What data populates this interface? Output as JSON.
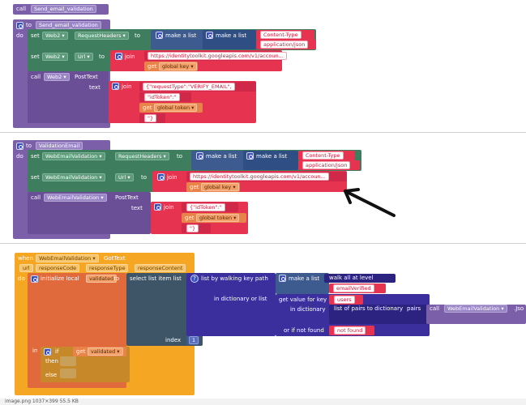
{
  "block1": {
    "call": "call",
    "name": "Send_email_validation"
  },
  "block2": {
    "to": "to",
    "name": "Send_email_validation",
    "do": "do",
    "set": "set",
    "web2": "Web2",
    "request_headers": "RequestHeaders",
    "to_kw": "to",
    "make_a_list": "make a list",
    "content_type": "Content-Type",
    "application_json": "application/json",
    "url": "Url",
    "join": "join",
    "url_value": "https://identitytoolkit.googleapis.com/v1/accoun...",
    "get": "get",
    "global_key": "global key",
    "call": "call",
    "post_text": "PostText",
    "text": "text",
    "request_type": "{\"requestType\":\"VERIFY_EMAIL\",",
    "id_token": "\"idToken\":\"",
    "global_token": "global token",
    "close_brace": "\"}"
  },
  "block3": {
    "to": "to",
    "name": "ValidationEmail",
    "do": "do",
    "set": "set",
    "component": "WebEmailValidation",
    "request_headers": "RequestHeaders",
    "to_kw": "to",
    "make_a_list": "make a list",
    "content_type": "Content-Type",
    "application_json": "application/json",
    "url": "Url",
    "join": "join",
    "url_value": "https://identitytoolkit.googleapis.com/v1/accoun...",
    "get": "get",
    "global_key": "global key",
    "call": "call",
    "post_text": "PostText",
    "text": "text",
    "id_token": "{\"idToken\":\"",
    "global_token": "global token",
    "close_brace": "\"}"
  },
  "block4": {
    "when": "when",
    "component": "WebEmailValidation",
    "event": "GotText",
    "params": [
      "url",
      "responseCode",
      "responseType",
      "responseContent"
    ],
    "do": "do",
    "initialize_local": "initialize local",
    "validated": "validated",
    "to_kw": "to",
    "select_list_item": "select list item  list",
    "list_by_walking": "list by walking key path",
    "make_a_list": "make a list",
    "walk_all": "walk all at level",
    "email_verified": "emailVerified",
    "in_dict_or_list": "in dictionary or list",
    "get_value_for_key": "get value for key",
    "users": "users",
    "in_dictionary": "in dictionary",
    "list_of_pairs": "list of pairs to dictionary",
    "pairs": "pairs",
    "call": "call",
    "json_component": "WebEmailValidation",
    "json_method": ".Jso",
    "or_if_not_found": "or if not found",
    "not_found": "not found",
    "index": "index",
    "index_value": "1",
    "in_kw": "in",
    "if_kw": "if",
    "get": "get",
    "then_kw": "then",
    "else_kw": "else"
  },
  "status_bar": "image.png  1037×399  55.5 KB",
  "colors": {
    "procedure": "#7b5fa8",
    "component_setter": "#3e7e5e",
    "list": "#3d5b8f",
    "text": "#e53350",
    "event": "#f5a623",
    "dictionary": "#3b2f9e"
  }
}
